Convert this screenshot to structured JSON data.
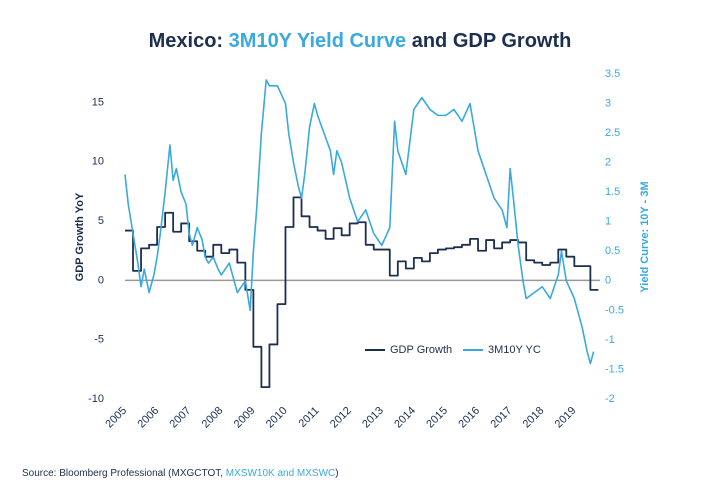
{
  "chart_data": {
    "type": "line",
    "title": [
      "Mexico: ",
      "3M10Y Yield Curve",
      " and GDP Growth"
    ],
    "title_colors": [
      "#1c2f4f",
      "#3aa9dd",
      "#1c2f4f"
    ],
    "y_label": "GDP Growth YoY",
    "y2_label": "Yield Curve: 10Y - 3M",
    "source": [
      "Source: Bloomberg Professional (MXGCTOT, ",
      "MXSW10K and MXSWC",
      ")"
    ],
    "source_colors": [
      "#1c2f4f",
      "#3aa9dd",
      "#1c2f4f"
    ],
    "xlim": [
      2005,
      2019.8
    ],
    "xticks": [
      2005,
      2006,
      2007,
      2008,
      2009,
      2010,
      2011,
      2012,
      2013,
      2014,
      2015,
      2016,
      2017,
      2018,
      2019
    ],
    "ylim": [
      -10,
      17.4
    ],
    "yticks": [
      15,
      10,
      5,
      0,
      -5,
      -10
    ],
    "y2lim": [
      -2,
      3.5
    ],
    "y2ticks": [
      3.5,
      3,
      2.5,
      2,
      1.5,
      1,
      0.5,
      0,
      -0.5,
      -1,
      -1.5,
      -2
    ],
    "zero_line": true,
    "series": [
      {
        "name": "GDP Growth",
        "color": "#1c2f4f",
        "step": true,
        "x": [
          2005,
          2005.25,
          2005.5,
          2005.75,
          2006,
          2006.25,
          2006.5,
          2006.75,
          2007,
          2007.25,
          2007.5,
          2007.75,
          2008,
          2008.25,
          2008.5,
          2008.75,
          2009,
          2009.25,
          2009.5,
          2009.75,
          2010,
          2010.25,
          2010.5,
          2010.75,
          2011,
          2011.25,
          2011.5,
          2011.75,
          2012,
          2012.25,
          2012.5,
          2012.75,
          2013,
          2013.25,
          2013.5,
          2013.75,
          2014,
          2014.25,
          2014.5,
          2014.75,
          2015,
          2015.25,
          2015.5,
          2015.75,
          2016,
          2016.25,
          2016.5,
          2016.75,
          2017,
          2017.25,
          2017.5,
          2017.75,
          2018,
          2018.25,
          2018.5,
          2018.75,
          2019,
          2019.25,
          2019.5
        ],
        "values": [
          4.2,
          0.8,
          2.7,
          3.0,
          4.5,
          5.7,
          4.1,
          4.8,
          3.3,
          2.5,
          2.0,
          3.0,
          2.3,
          2.6,
          1.5,
          -0.8,
          -5.6,
          -9.0,
          -5.4,
          -2.0,
          4.5,
          7.0,
          5.4,
          4.5,
          4.2,
          3.5,
          4.4,
          3.8,
          4.8,
          4.9,
          3.0,
          2.6,
          2.6,
          0.4,
          1.6,
          1.0,
          1.9,
          1.6,
          2.3,
          2.6,
          2.7,
          2.8,
          3.0,
          3.5,
          2.5,
          3.4,
          2.7,
          3.2,
          3.4,
          3.2,
          1.7,
          1.5,
          1.3,
          1.5,
          2.6,
          2.0,
          1.2,
          1.2,
          -0.8
        ]
      },
      {
        "name": "3M10Y YC",
        "color": "#3aa9dd",
        "axis": "y2",
        "x": [
          2005,
          2005.1,
          2005.25,
          2005.4,
          2005.5,
          2005.6,
          2005.75,
          2005.9,
          2006,
          2006.1,
          2006.25,
          2006.4,
          2006.5,
          2006.6,
          2006.75,
          2006.9,
          2007,
          2007.1,
          2007.25,
          2007.4,
          2007.5,
          2007.6,
          2007.75,
          2007.9,
          2008,
          2008.25,
          2008.5,
          2008.75,
          2008.9,
          2009,
          2009.1,
          2009.25,
          2009.4,
          2009.5,
          2009.75,
          2010,
          2010.1,
          2010.25,
          2010.4,
          2010.5,
          2010.6,
          2010.75,
          2010.9,
          2011,
          2011.2,
          2011.4,
          2011.5,
          2011.6,
          2011.75,
          2012,
          2012.25,
          2012.5,
          2012.75,
          2013,
          2013.25,
          2013.4,
          2013.5,
          2013.75,
          2014,
          2014.25,
          2014.5,
          2014.75,
          2015,
          2015.25,
          2015.5,
          2015.75,
          2016,
          2016.25,
          2016.5,
          2016.75,
          2016.9,
          2017,
          2017.1,
          2017.25,
          2017.4,
          2017.5,
          2017.75,
          2018,
          2018.25,
          2018.5,
          2018.6,
          2018.75,
          2019,
          2019.25,
          2019.4,
          2019.5,
          2019.6
        ],
        "values": [
          1.8,
          1.3,
          0.8,
          0.3,
          -0.1,
          0.2,
          -0.2,
          0.1,
          0.4,
          0.8,
          1.5,
          2.3,
          1.7,
          1.9,
          1.5,
          1.3,
          0.8,
          0.6,
          0.9,
          0.7,
          0.4,
          0.3,
          0.4,
          0.2,
          0.1,
          0.3,
          -0.2,
          0.0,
          -0.5,
          0.5,
          1.2,
          2.5,
          3.4,
          3.3,
          3.3,
          3.0,
          2.5,
          2.0,
          1.6,
          1.4,
          1.8,
          2.6,
          3.0,
          2.8,
          2.5,
          2.2,
          1.8,
          2.2,
          2.0,
          1.4,
          1.0,
          1.2,
          0.8,
          0.6,
          0.9,
          2.7,
          2.2,
          1.8,
          2.9,
          3.1,
          2.9,
          2.8,
          2.8,
          2.9,
          2.7,
          3.0,
          2.2,
          1.8,
          1.4,
          1.2,
          0.9,
          1.9,
          1.4,
          0.6,
          0.0,
          -0.3,
          -0.2,
          -0.1,
          -0.3,
          0.1,
          0.5,
          0.0,
          -0.3,
          -0.8,
          -1.2,
          -1.4,
          -1.2
        ]
      }
    ]
  }
}
